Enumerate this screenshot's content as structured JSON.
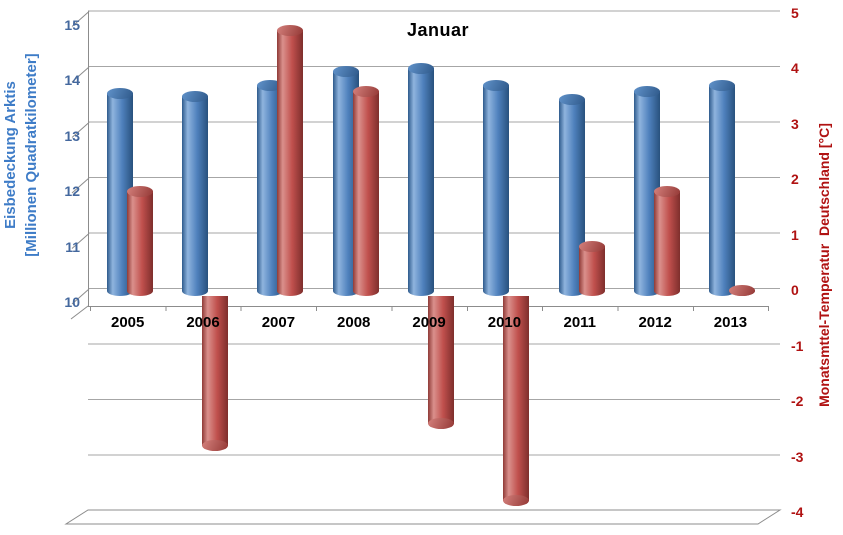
{
  "chart_data": {
    "type": "bar",
    "bar_style": "cylinder-3d",
    "title": "Januar",
    "categories": [
      "2005",
      "2006",
      "2007",
      "2008",
      "2009",
      "2010",
      "2011",
      "2012",
      "2013"
    ],
    "series": [
      {
        "name": "Eisbedeckung Arktis [Millionen Quadratkilometer]",
        "axis": "left",
        "color": "#4F81BD",
        "values": [
          13.65,
          13.6,
          13.8,
          14.05,
          14.1,
          13.8,
          13.55,
          13.7,
          13.8
        ]
      },
      {
        "name": "Monatsmttel-Temperatur Deutschland [°C]",
        "axis": "right",
        "color": "#C0504D",
        "values": [
          1.9,
          -2.7,
          4.8,
          3.7,
          -2.3,
          -3.7,
          0.9,
          1.9,
          0.1
        ]
      }
    ],
    "left_axis_range": [
      10,
      15
    ],
    "right_axis_range": [
      -4,
      5
    ],
    "grid": true,
    "legend": false
  },
  "left_axis": {
    "title_line1": "Eisbedeckung Arktis",
    "title_line2": "[Millionen Quadratkilometer]",
    "ticks": [
      "15",
      "14",
      "13",
      "12",
      "11",
      "10"
    ],
    "title_color": "#3E7CC7",
    "tick_color": "#44689E"
  },
  "right_axis": {
    "title": "Monatsmttel-Temperatur  Deutschland [°C]",
    "ticks": [
      "5",
      "4",
      "3",
      "2",
      "1",
      "0",
      "-1",
      "-2",
      "-3",
      "-4"
    ],
    "title_color": "#B01212",
    "tick_color": "#B01212"
  },
  "colors": {
    "background": "#FFFFFF",
    "grid": "#A6A6A6",
    "axis": "#8C8C8C",
    "category_label": "#000000",
    "blue_body": [
      "#2E5A8C",
      "#8FB4DE",
      "#4F81BD",
      "#28517D"
    ],
    "blue_cap": [
      "#5C8DC4",
      "#335E90"
    ],
    "red_body": [
      "#8F3A37",
      "#DA908C",
      "#C0504D",
      "#7E2E2C"
    ],
    "red_cap": [
      "#CE7A76",
      "#9A3F3C"
    ]
  }
}
